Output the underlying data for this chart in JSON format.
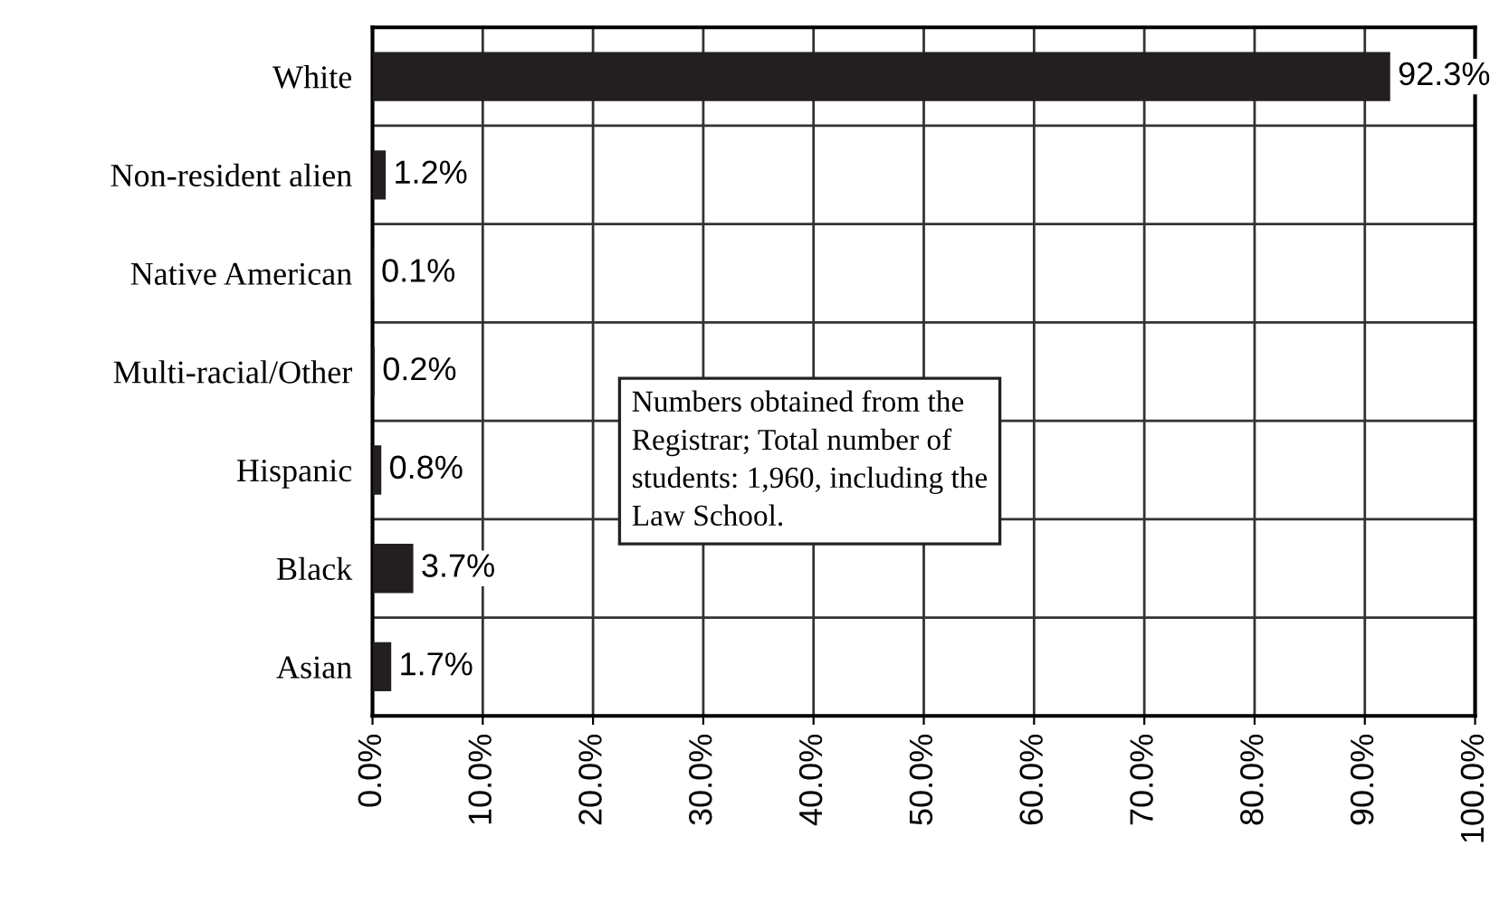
{
  "chart_data": {
    "type": "bar",
    "orientation": "horizontal",
    "categories": [
      "White",
      "Non-resident alien",
      "Native American",
      "Multi-racial/Other",
      "Hispanic",
      "Black",
      "Asian"
    ],
    "values": [
      92.3,
      1.2,
      0.1,
      0.2,
      0.8,
      3.7,
      1.7
    ],
    "value_labels": [
      "92.3%",
      "1.2%",
      "0.1%",
      "0.2%",
      "0.8%",
      "3.7%",
      "1.7%"
    ],
    "color": "#231f20",
    "xlim": [
      0,
      100
    ],
    "xticks": [
      {
        "value": 0,
        "label": "0.0%"
      },
      {
        "value": 10,
        "label": "10.0%"
      },
      {
        "value": 20,
        "label": "20.0%"
      },
      {
        "value": 30,
        "label": "30.0%"
      },
      {
        "value": 40,
        "label": "40.0%"
      },
      {
        "value": 50,
        "label": "50.0%"
      },
      {
        "value": 60,
        "label": "60.0%"
      },
      {
        "value": 70,
        "label": "70.0%"
      },
      {
        "value": 80,
        "label": "80.0%"
      },
      {
        "value": 90,
        "label": "90.0%"
      },
      {
        "value": 100,
        "label": "100.0%"
      }
    ],
    "grid": true,
    "annotations": [
      "Numbers obtained from the\nRegistrar; Total number of\nstudents: 1,960, including the\nLaw School."
    ]
  }
}
